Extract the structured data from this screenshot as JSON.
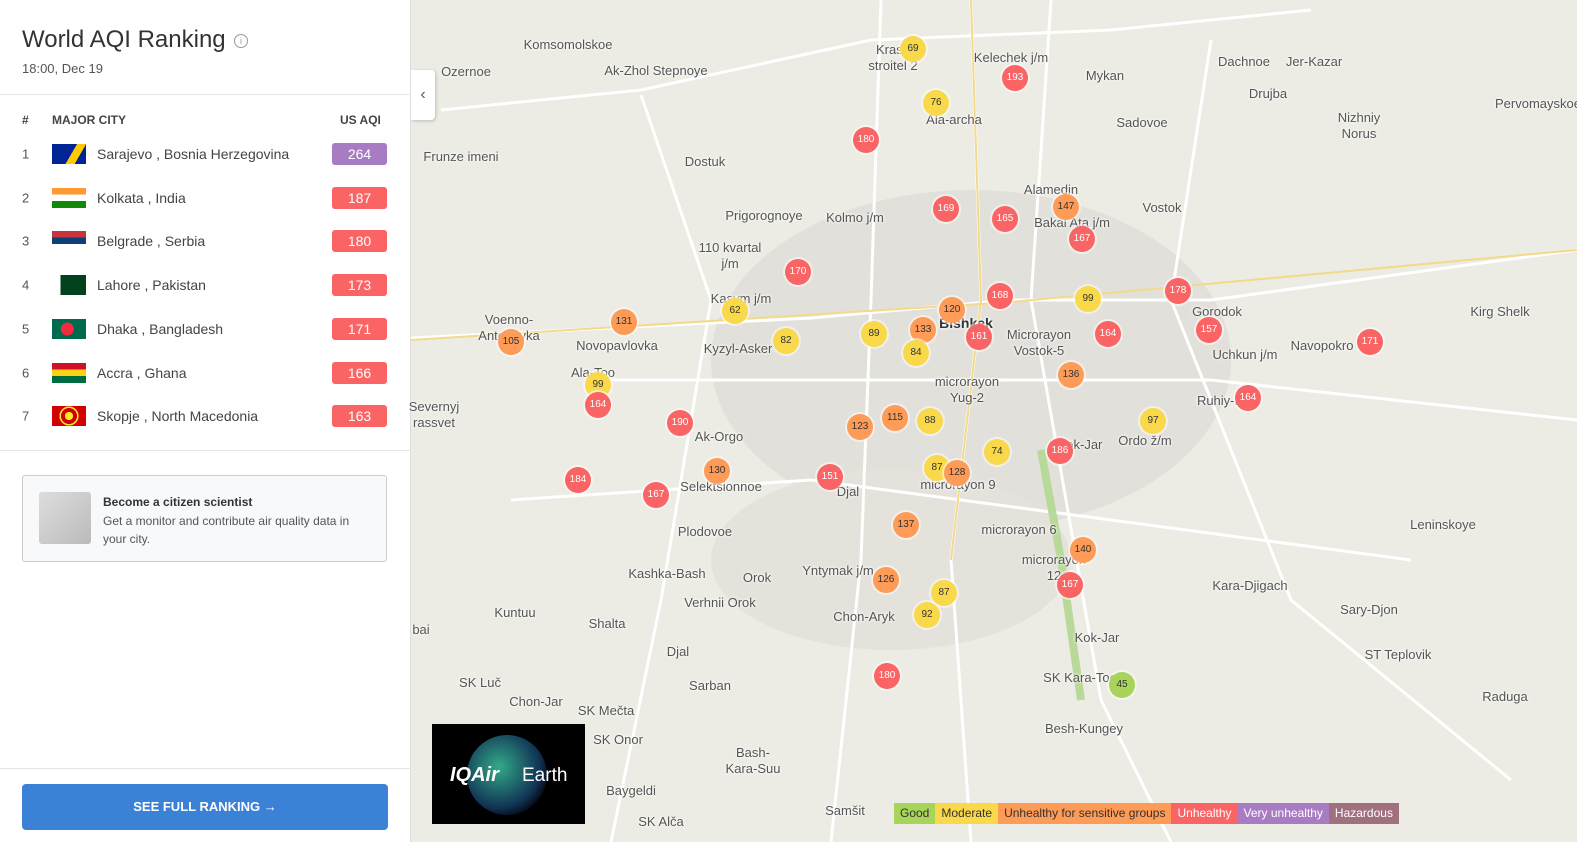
{
  "sidebar": {
    "title": "World AQI Ranking",
    "timestamp": "18:00, Dec 19",
    "table": {
      "headers": [
        "#",
        "MAJOR CITY",
        "US AQI"
      ],
      "rows": [
        {
          "rank": 1,
          "city": "Sarajevo , Bosnia Herzegovina",
          "aqi": 264
        },
        {
          "rank": 2,
          "city": "Kolkata , India",
          "aqi": 187
        },
        {
          "rank": 3,
          "city": "Belgrade , Serbia",
          "aqi": 180
        },
        {
          "rank": 4,
          "city": "Lahore , Pakistan",
          "aqi": 173
        },
        {
          "rank": 5,
          "city": "Dhaka , Bangladesh",
          "aqi": 171
        },
        {
          "rank": 6,
          "city": "Accra , Ghana",
          "aqi": 166
        },
        {
          "rank": 7,
          "city": "Skopje , North Macedonia",
          "aqi": 163
        }
      ]
    },
    "promo": {
      "title": "Become a citizen scientist",
      "text": "Get a monitor and contribute air quality data in your city."
    },
    "button": "SEE FULL RANKING"
  },
  "map": {
    "places": [
      "Komsomolskoe",
      "Ozernoe",
      "Ak-Zhol Stepnoye",
      "Krasn\nstroitel 2",
      "Kelechek j/m",
      "Mykan",
      "Dachnoe",
      "Jer-Kazar",
      "Drujba",
      "Pervomayskoe",
      "Nizhniy\nNorus",
      "Sadovoe",
      "Frunze imeni",
      "Dostuk",
      "Ala-archa",
      "Alamedin",
      "Vostok",
      "Prigorognoye",
      "Kolmo j/m",
      "Bakai Ata j/m",
      "110 kvartal\nj/m",
      "Kasym j/m",
      "Gorodok",
      "Kirg Shelk",
      "Voenno-\nAntonovka",
      "Novopavlovka",
      "Kyzyl-Asker",
      "Bishkek",
      "Microrayon\nVostok-5",
      "Uchkun j/m",
      "Navopokro",
      "Ala-Too",
      "microrayon\nYug-2",
      "Ruhiy-Mirs",
      "Severnyj\nrassvet",
      "Ak-Orgo",
      "Kok-Jar",
      "Ordo ž/m",
      "Djal",
      "Selektsionnoe",
      "microrayon 9",
      "microrayon 6",
      "Leninskoye",
      "Plodovoe",
      "microrayon\n12",
      "Kashka-Bash",
      "Orok",
      "Yntymak j/m",
      "Kara-Djigach",
      "Verhnii Orok",
      "Sary-Djon",
      "Kuntuu",
      "Shalta",
      "Chon-Aryk",
      "bai",
      "Kok-Jar",
      "Djal",
      "ST Teplovik",
      "SK Kara-Too",
      "SK Luč",
      "Sarban",
      "Raduga",
      "Chon-Jar",
      "SK Mečta",
      "Besh-Kungey",
      "SK Onor",
      "Bash-\nKara-Suu",
      "Baygeldi",
      "Samšit",
      "SK Alča"
    ],
    "stations": [
      69,
      193,
      76,
      180,
      169,
      165,
      147,
      167,
      170,
      178,
      168,
      99,
      131,
      62,
      120,
      157,
      171,
      105,
      82,
      89,
      133,
      161,
      164,
      84,
      136,
      99,
      164,
      164,
      190,
      115,
      88,
      123,
      97,
      74,
      186,
      130,
      184,
      151,
      87,
      128,
      167,
      137,
      140,
      126,
      167,
      87,
      92,
      180,
      45
    ],
    "logo": {
      "brand": "IQAir",
      "product": "Earth"
    },
    "legend": [
      {
        "label": "Good",
        "color": "#a8d45a"
      },
      {
        "label": "Moderate",
        "color": "#f9d84a"
      },
      {
        "label": "Unhealthy for sensitive groups",
        "color": "#fd9b57"
      },
      {
        "label": "Unhealthy",
        "color": "#fb6465"
      },
      {
        "label": "Very unhealthy",
        "color": "#a87cc2"
      },
      {
        "label": "Hazardous",
        "color": "#a0707f"
      }
    ]
  }
}
